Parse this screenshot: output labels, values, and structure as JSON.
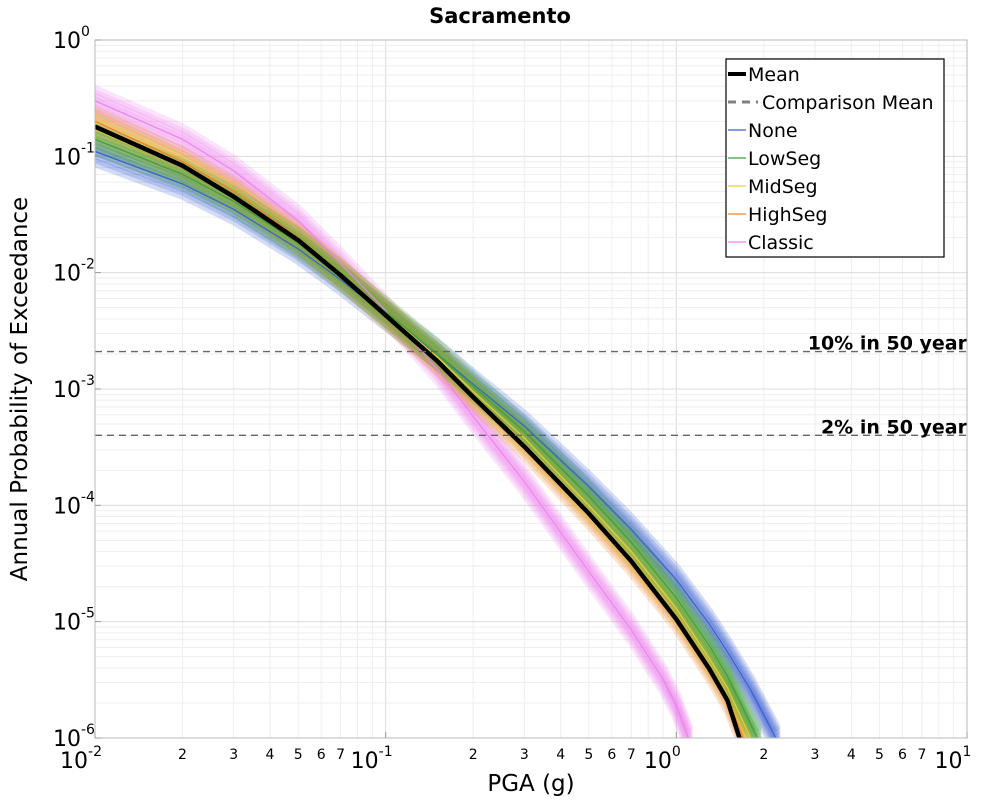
{
  "chart_data": {
    "type": "line",
    "title": "Sacramento",
    "xlabel": "PGA (g)",
    "ylabel": "Annual Probability of Exceedance",
    "x_scale": "log",
    "y_scale": "log",
    "xlim": [
      0.01,
      10
    ],
    "ylim": [
      1e-06,
      1
    ],
    "grid": true,
    "legend_position": "top-right",
    "x_major_ticks": [
      {
        "value": 0.01,
        "base": "10",
        "exp": "-2"
      },
      {
        "value": 0.1,
        "base": "10",
        "exp": "-1"
      },
      {
        "value": 1,
        "base": "10",
        "exp": "0"
      },
      {
        "value": 10,
        "base": "10",
        "exp": "1"
      }
    ],
    "x_minor_tick_labels": [
      "2",
      "3",
      "4",
      "5",
      "6",
      "7"
    ],
    "y_major_ticks": [
      {
        "value": 1,
        "base": "10",
        "exp": "0"
      },
      {
        "value": 0.1,
        "base": "10",
        "exp": "-1"
      },
      {
        "value": 0.01,
        "base": "10",
        "exp": "-2"
      },
      {
        "value": 0.001,
        "base": "10",
        "exp": "-3"
      },
      {
        "value": 0.0001,
        "base": "10",
        "exp": "-4"
      },
      {
        "value": 1e-05,
        "base": "10",
        "exp": "-5"
      },
      {
        "value": 1e-06,
        "base": "10",
        "exp": "-6"
      }
    ],
    "series": [
      {
        "name": "Mean",
        "color": "#000000",
        "style": "solid-thick",
        "x": [
          0.01,
          0.02,
          0.03,
          0.05,
          0.07,
          0.1,
          0.15,
          0.2,
          0.3,
          0.5,
          0.7,
          1.0,
          1.3,
          1.5,
          1.65
        ],
        "y": [
          0.18,
          0.083,
          0.045,
          0.019,
          0.0095,
          0.0043,
          0.00175,
          0.00085,
          0.00032,
          8.5e-05,
          3.3e-05,
          1.05e-05,
          3.9e-06,
          2.1e-06,
          1e-06
        ]
      },
      {
        "name": "Comparison Mean",
        "color": "#808080",
        "style": "dashed",
        "x": [],
        "y": []
      },
      {
        "name": "None",
        "color": "#3a5fd0",
        "style": "thin",
        "x": [
          0.01,
          0.02,
          0.03,
          0.05,
          0.07,
          0.1,
          0.15,
          0.2,
          0.3,
          0.5,
          0.7,
          1.0,
          1.3,
          1.5,
          1.8,
          2.2
        ],
        "y": [
          0.11,
          0.058,
          0.035,
          0.016,
          0.0087,
          0.0043,
          0.002,
          0.0011,
          0.00048,
          0.000145,
          6.2e-05,
          2.3e-05,
          9.5e-06,
          5.5e-06,
          2.6e-06,
          1e-06
        ]
      },
      {
        "name": "LowSeg",
        "color": "#3f9f3f",
        "style": "thin",
        "x": [
          0.01,
          0.02,
          0.03,
          0.05,
          0.07,
          0.1,
          0.15,
          0.2,
          0.3,
          0.5,
          0.7,
          1.0,
          1.3,
          1.5,
          1.9
        ],
        "y": [
          0.14,
          0.07,
          0.041,
          0.018,
          0.0095,
          0.0046,
          0.002,
          0.00105,
          0.00043,
          0.00012,
          4.8e-05,
          1.6e-05,
          6.2e-06,
          3.4e-06,
          1e-06
        ]
      },
      {
        "name": "MidSeg",
        "color": "#e5cf3a",
        "style": "thin",
        "x": [
          0.01,
          0.02,
          0.03,
          0.05,
          0.07,
          0.1,
          0.15,
          0.2,
          0.3,
          0.5,
          0.7,
          1.0,
          1.3,
          1.5,
          1.8
        ],
        "y": [
          0.17,
          0.08,
          0.045,
          0.019,
          0.0097,
          0.0045,
          0.0019,
          0.00095,
          0.00038,
          0.0001,
          4e-05,
          1.3e-05,
          4.8e-06,
          2.7e-06,
          1e-06
        ]
      },
      {
        "name": "HighSeg",
        "color": "#e8822a",
        "style": "thin",
        "x": [
          0.01,
          0.02,
          0.03,
          0.05,
          0.07,
          0.1,
          0.15,
          0.2,
          0.3,
          0.5,
          0.7,
          1.0,
          1.3,
          1.5,
          1.7
        ],
        "y": [
          0.2,
          0.09,
          0.05,
          0.02,
          0.0098,
          0.0044,
          0.0018,
          0.00088,
          0.00033,
          8.5e-05,
          3.3e-05,
          1.1e-05,
          4e-06,
          2.2e-06,
          1e-06
        ]
      },
      {
        "name": "Classic",
        "color": "#ee82ee",
        "style": "thin",
        "x": [
          0.01,
          0.02,
          0.03,
          0.05,
          0.07,
          0.1,
          0.15,
          0.2,
          0.3,
          0.5,
          0.7,
          0.9,
          1.0,
          1.1
        ],
        "y": [
          0.3,
          0.14,
          0.075,
          0.028,
          0.012,
          0.0047,
          0.0015,
          0.00058,
          0.00016,
          2.7e-05,
          8.5e-06,
          3.2e-06,
          1.9e-06,
          1e-06
        ]
      }
    ],
    "reference_lines": [
      {
        "label": "10% in 50 year",
        "y": 0.0021
      },
      {
        "label": "2% in 50 year",
        "y": 0.0004
      }
    ]
  }
}
